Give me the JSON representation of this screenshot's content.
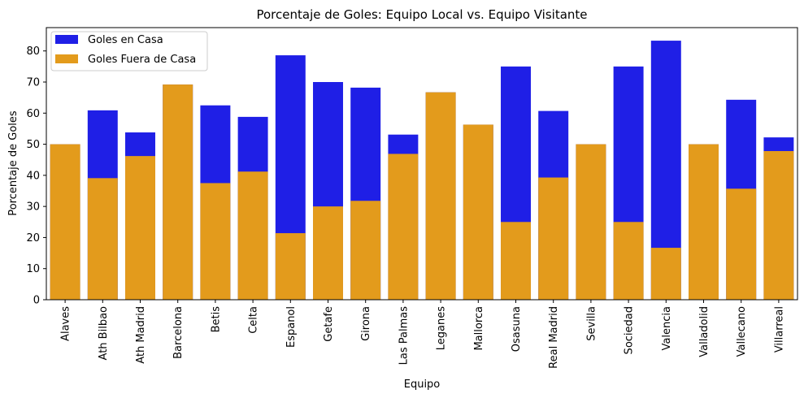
{
  "chart_data": {
    "type": "bar",
    "title": "Porcentaje de Goles: Equipo Local vs. Equipo Visitante",
    "xlabel": "Equipo",
    "ylabel": "Porcentaje de Goles",
    "ylim": [
      0,
      87.5
    ],
    "yticks": [
      0,
      10,
      20,
      30,
      40,
      50,
      60,
      70,
      80
    ],
    "grid": false,
    "legend_position": "top-left",
    "categories": [
      "Alaves",
      "Ath Bilbao",
      "Ath Madrid",
      "Barcelona",
      "Betis",
      "Celta",
      "Espanol",
      "Getafe",
      "Girona",
      "Las Palmas",
      "Leganes",
      "Mallorca",
      "Osasuna",
      "Real Madrid",
      "Sevilla",
      "Sociedad",
      "Valencia",
      "Valladolid",
      "Vallecano",
      "Villarreal"
    ],
    "series": [
      {
        "name": "Goles en Casa",
        "color": "#1f1fe6",
        "values": [
          50,
          60.9,
          53.8,
          69.2,
          62.5,
          58.8,
          78.6,
          70,
          68.2,
          53.1,
          66.7,
          56.3,
          75,
          60.7,
          50,
          75,
          83.3,
          50,
          64.3,
          52.2
        ]
      },
      {
        "name": "Goles Fuera de Casa",
        "color": "#e39b1c",
        "values": [
          50,
          39.1,
          46.2,
          69.2,
          37.5,
          41.2,
          21.4,
          30,
          31.8,
          46.9,
          66.7,
          56.3,
          25,
          39.3,
          50,
          25,
          16.7,
          50,
          35.7,
          47.8
        ]
      }
    ]
  }
}
